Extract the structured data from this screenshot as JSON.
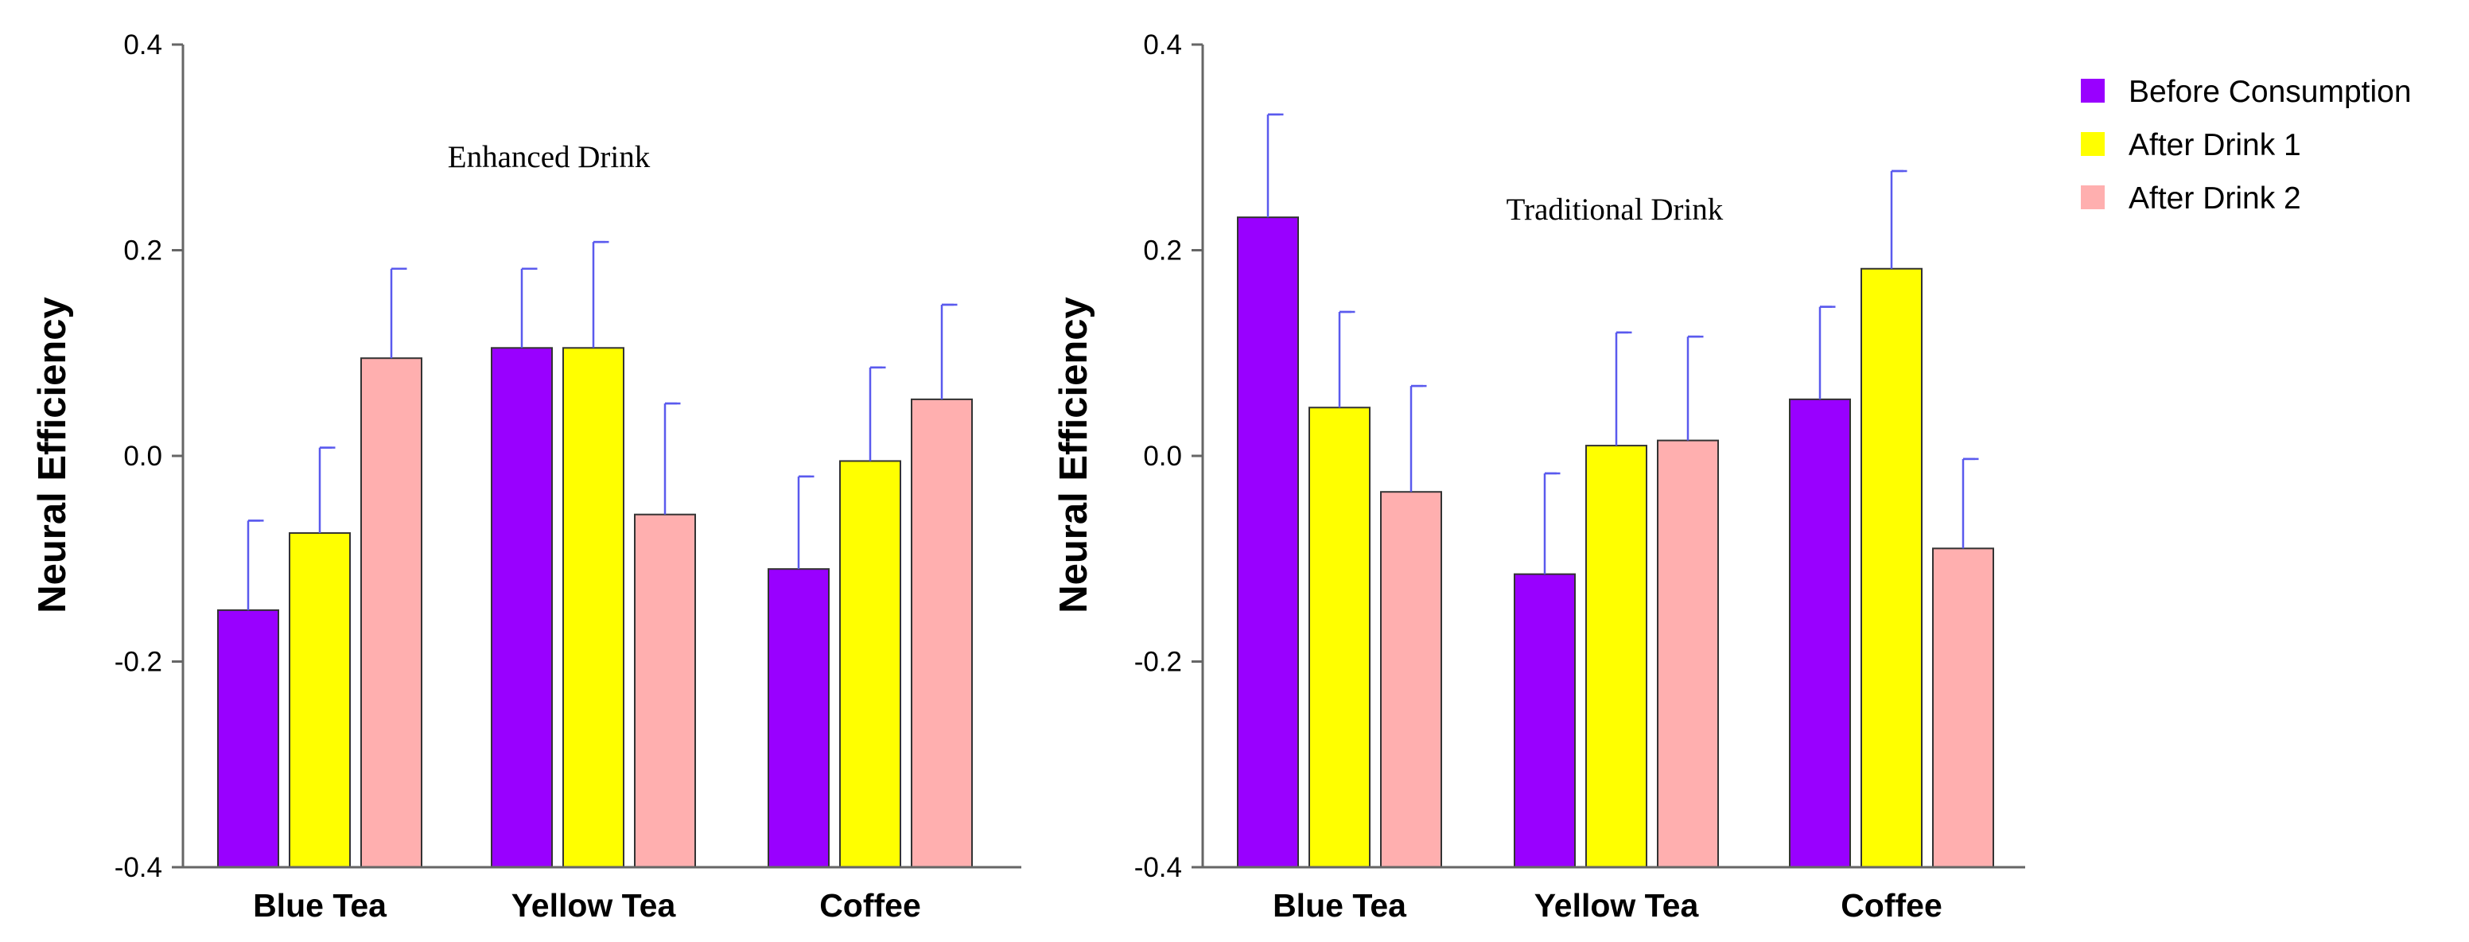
{
  "chart_data": [
    {
      "type": "bar",
      "title": "Enhanced Drink",
      "ylabel": "Neural Efficiency",
      "xlabel": "",
      "ylim": [
        -0.4,
        0.4
      ],
      "yticks": [
        "0.4",
        "0.2",
        "0.0",
        "-0.2",
        "-0.4"
      ],
      "categories": [
        "Blue Tea",
        "Yellow Tea",
        "Coffee"
      ],
      "series": [
        {
          "name": "Before Consumption",
          "values": [
            -0.15,
            0.105,
            -0.11
          ],
          "errors": [
            0.087,
            0.077,
            0.09
          ]
        },
        {
          "name": "After Drink 1",
          "values": [
            -0.075,
            0.105,
            -0.005
          ],
          "errors": [
            0.083,
            0.103,
            0.091
          ]
        },
        {
          "name": "After Drink 2",
          "values": [
            0.095,
            -0.057,
            0.055
          ],
          "errors": [
            0.087,
            0.108,
            0.092
          ]
        }
      ]
    },
    {
      "type": "bar",
      "title": "Traditional Drink",
      "ylabel": "Neural Efficiency",
      "xlabel": "",
      "ylim": [
        -0.4,
        0.4
      ],
      "yticks": [
        "0.4",
        "0.2",
        "0.0",
        "-0.2",
        "-0.4"
      ],
      "categories": [
        "Blue Tea",
        "Yellow Tea",
        "Coffee"
      ],
      "series": [
        {
          "name": "Before Consumption",
          "values": [
            0.232,
            -0.115,
            0.055
          ],
          "errors": [
            0.1,
            0.098,
            0.09
          ]
        },
        {
          "name": "After Drink 1",
          "values": [
            0.047,
            0.01,
            0.182
          ],
          "errors": [
            0.093,
            0.11,
            0.095
          ]
        },
        {
          "name": "After Drink 2",
          "values": [
            -0.035,
            0.015,
            -0.09
          ],
          "errors": [
            0.103,
            0.101,
            0.087
          ]
        }
      ]
    }
  ],
  "legend": {
    "position": "top-right",
    "entries": [
      {
        "label": "Before Consumption",
        "color": "#9900FF"
      },
      {
        "label": "After Drink 1",
        "color": "#FFFF00"
      },
      {
        "label": "After Drink 2",
        "color": "#FFAFAF"
      }
    ]
  },
  "colors": {
    "series": [
      "#9900FF",
      "#FFFF00",
      "#FFAFAF"
    ],
    "error_bar": "#5A5AEE",
    "axis": "#666666"
  }
}
